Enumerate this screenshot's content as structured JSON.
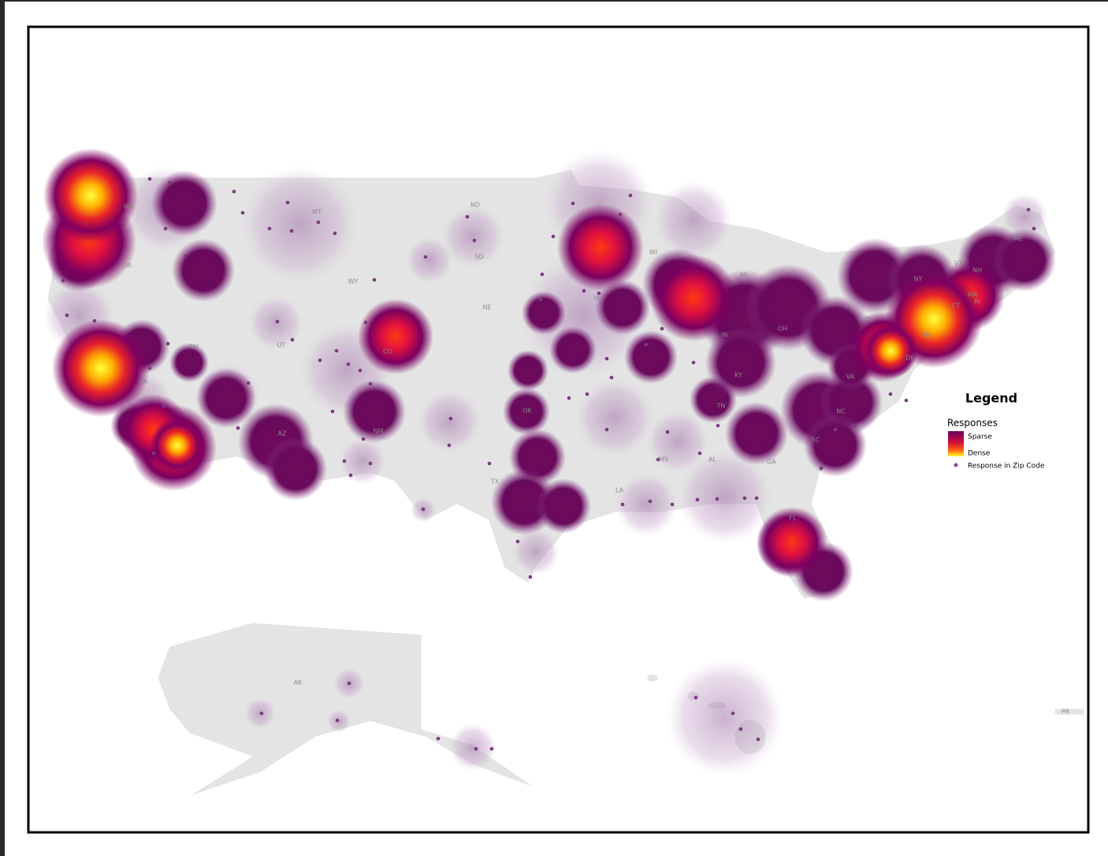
{
  "map": {
    "state_labels": [
      "WA",
      "OR",
      "CA",
      "NV",
      "MT",
      "WY",
      "UT",
      "CO",
      "AZ",
      "NM",
      "ND",
      "SD",
      "NE",
      "OK",
      "TX",
      "IA",
      "WI",
      "MI",
      "IN",
      "OH",
      "KY",
      "TN",
      "MS",
      "AL",
      "GA",
      "FL",
      "LA",
      "SC",
      "NC",
      "VA",
      "PA",
      "NY",
      "VT",
      "NH",
      "ME",
      "MA",
      "RI",
      "CT",
      "NJ",
      "DE",
      "AK",
      "PR"
    ]
  },
  "legend": {
    "title": "Legend",
    "subtitle": "Responses",
    "sparse": "Sparse",
    "dense": "Dense",
    "point": "Response in Zip Code"
  }
}
